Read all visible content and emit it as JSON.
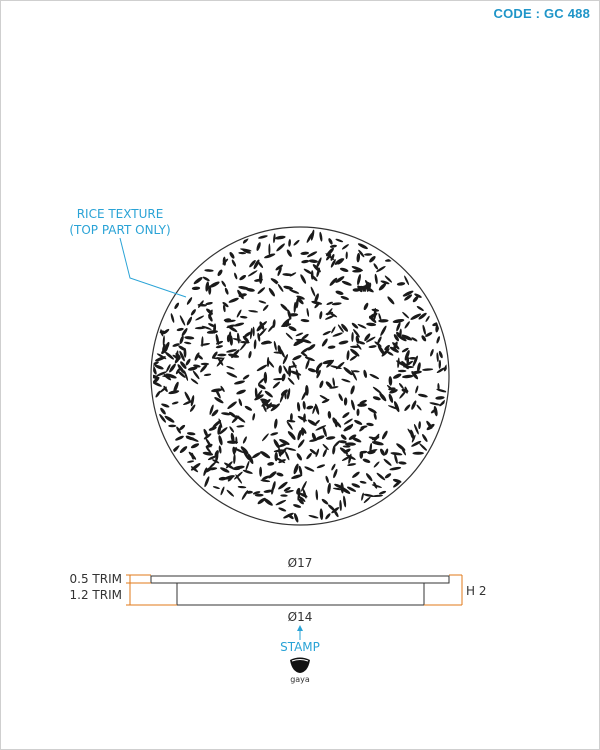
{
  "code_label": "CODE : GC 488",
  "callouts": {
    "texture_line1": "RICE TEXTURE",
    "texture_line2": "(TOP PART ONLY)",
    "stamp": "STAMP",
    "logo_text": "gaya"
  },
  "dimensions": {
    "top_diameter": "Ø17",
    "bottom_diameter": "Ø14",
    "top_trim": "0.5 TRIM",
    "bottom_trim": "1.2 TRIM",
    "height": "H 2"
  },
  "colors": {
    "accent": "#2aa3d6",
    "dimension_lines": "#e07a1a",
    "outline": "#333333"
  },
  "icons": [
    "stamp-bowl-icon",
    "arrow-up-icon"
  ]
}
